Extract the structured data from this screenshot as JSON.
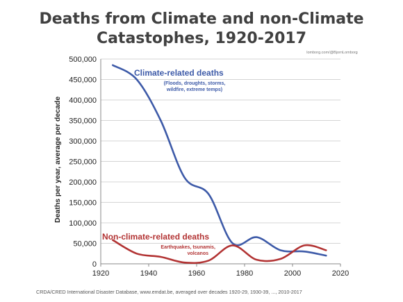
{
  "title_line1": "Deaths from Climate and non-Climate",
  "title_line2": "Catastophes, 1920-2017",
  "credit": "lomborg.com/@BjornLomborg",
  "source": "CRDA/CRED International Disaster Database, www.emdat.be, averaged over decades 1920-29, 1930-39, ..., 2010-2017",
  "colors": {
    "climate": "#3d5aa8",
    "non_climate": "#b23333",
    "grid": "#d4d4d4",
    "axis": "#888888",
    "title": "#404040"
  },
  "chart_data": {
    "type": "line",
    "title": "Deaths from Climate and non-Climate Catastophes, 1920-2017",
    "ylabel": "Deaths per year, average per decade",
    "xlabel": "",
    "xlim": [
      1920,
      2020
    ],
    "ylim": [
      0,
      500000
    ],
    "x_ticks": [
      1920,
      1940,
      1960,
      1980,
      2000,
      2020
    ],
    "y_ticks": [
      0,
      50000,
      100000,
      150000,
      200000,
      250000,
      300000,
      350000,
      400000,
      450000,
      500000
    ],
    "y_tick_labels": [
      "0",
      "50,000",
      "100,000",
      "150,000",
      "200,000",
      "250,000",
      "300,000",
      "350,000",
      "400,000",
      "450,000",
      "500,000"
    ],
    "x_tick_labels": [
      "1920",
      "1940",
      "1960",
      "1980",
      "2000",
      "2020"
    ],
    "grid": "horizontal",
    "series": [
      {
        "name": "Climate-related deaths",
        "subtitle_line1": "(Floods, droughts, storms,",
        "subtitle_line2": "wildfire, extreme temps)",
        "x": [
          1925,
          1935,
          1945,
          1955,
          1965,
          1975,
          1985,
          1995,
          2005,
          2014
        ],
        "y": [
          485000,
          450000,
          350000,
          210000,
          170000,
          50000,
          65000,
          33000,
          30000,
          20000
        ]
      },
      {
        "name": "Non-climate-related deaths",
        "subtitle_line1": "Earthquakes, tsunamis,",
        "subtitle_line2": "volcanos",
        "x": [
          1925,
          1935,
          1945,
          1955,
          1965,
          1975,
          1985,
          1995,
          2005,
          2014
        ],
        "y": [
          58000,
          25000,
          17000,
          3000,
          8000,
          45000,
          10000,
          12000,
          45000,
          33000
        ]
      }
    ]
  }
}
